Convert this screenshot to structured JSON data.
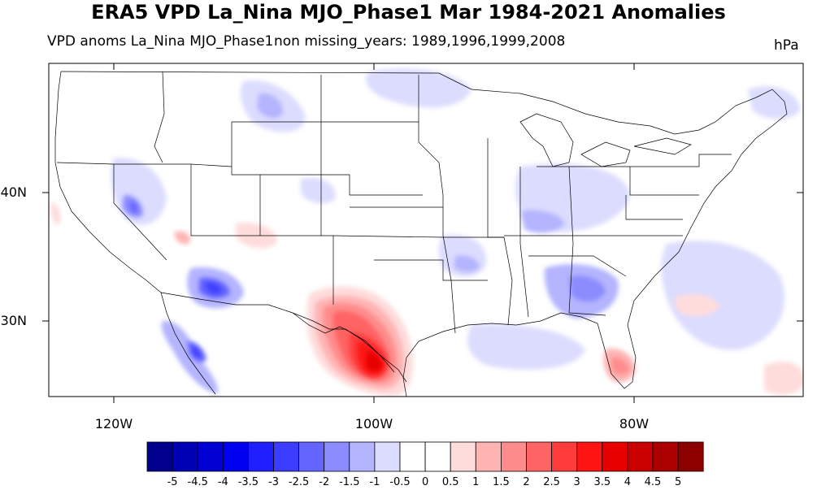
{
  "title": "ERA5 VPD La_Nina MJO_Phase1 Mar 1984-2021 Anomalies",
  "left_string": "VPD anoms La_Nina MJO_Phase1",
  "center_string": "non missing_years: 1989,1996,1999,2008",
  "units": "hPa",
  "lat_labels": [
    "40N",
    "30N"
  ],
  "lon_labels": [
    "120W",
    "100W",
    "80W"
  ],
  "colorbar": {
    "labels": [
      "-5",
      "-4.5",
      "-4",
      "-3.5",
      "-3",
      "-2.5",
      "-2",
      "-1.5",
      "-1",
      "-0.5",
      "0",
      "0.5",
      "1",
      "1.5",
      "2",
      "2.5",
      "3",
      "3.5",
      "4",
      "4.5",
      "5"
    ],
    "colors": [
      "#00008c",
      "#0000b4",
      "#0000d2",
      "#0000f0",
      "#1e1eff",
      "#3c3cff",
      "#6464ff",
      "#8c8cff",
      "#b4b4ff",
      "#dcdcff",
      "#ffffff",
      "#ffffff",
      "#ffdcdc",
      "#ffb4b4",
      "#ff8c8c",
      "#ff6464",
      "#ff3c3c",
      "#ff1414",
      "#e60000",
      "#c80000",
      "#aa0000",
      "#8c0000"
    ]
  },
  "colors": {
    "negative_anomaly": "#3c3cff",
    "positive_anomaly": "#ff1414",
    "coastline": "#000000"
  }
}
